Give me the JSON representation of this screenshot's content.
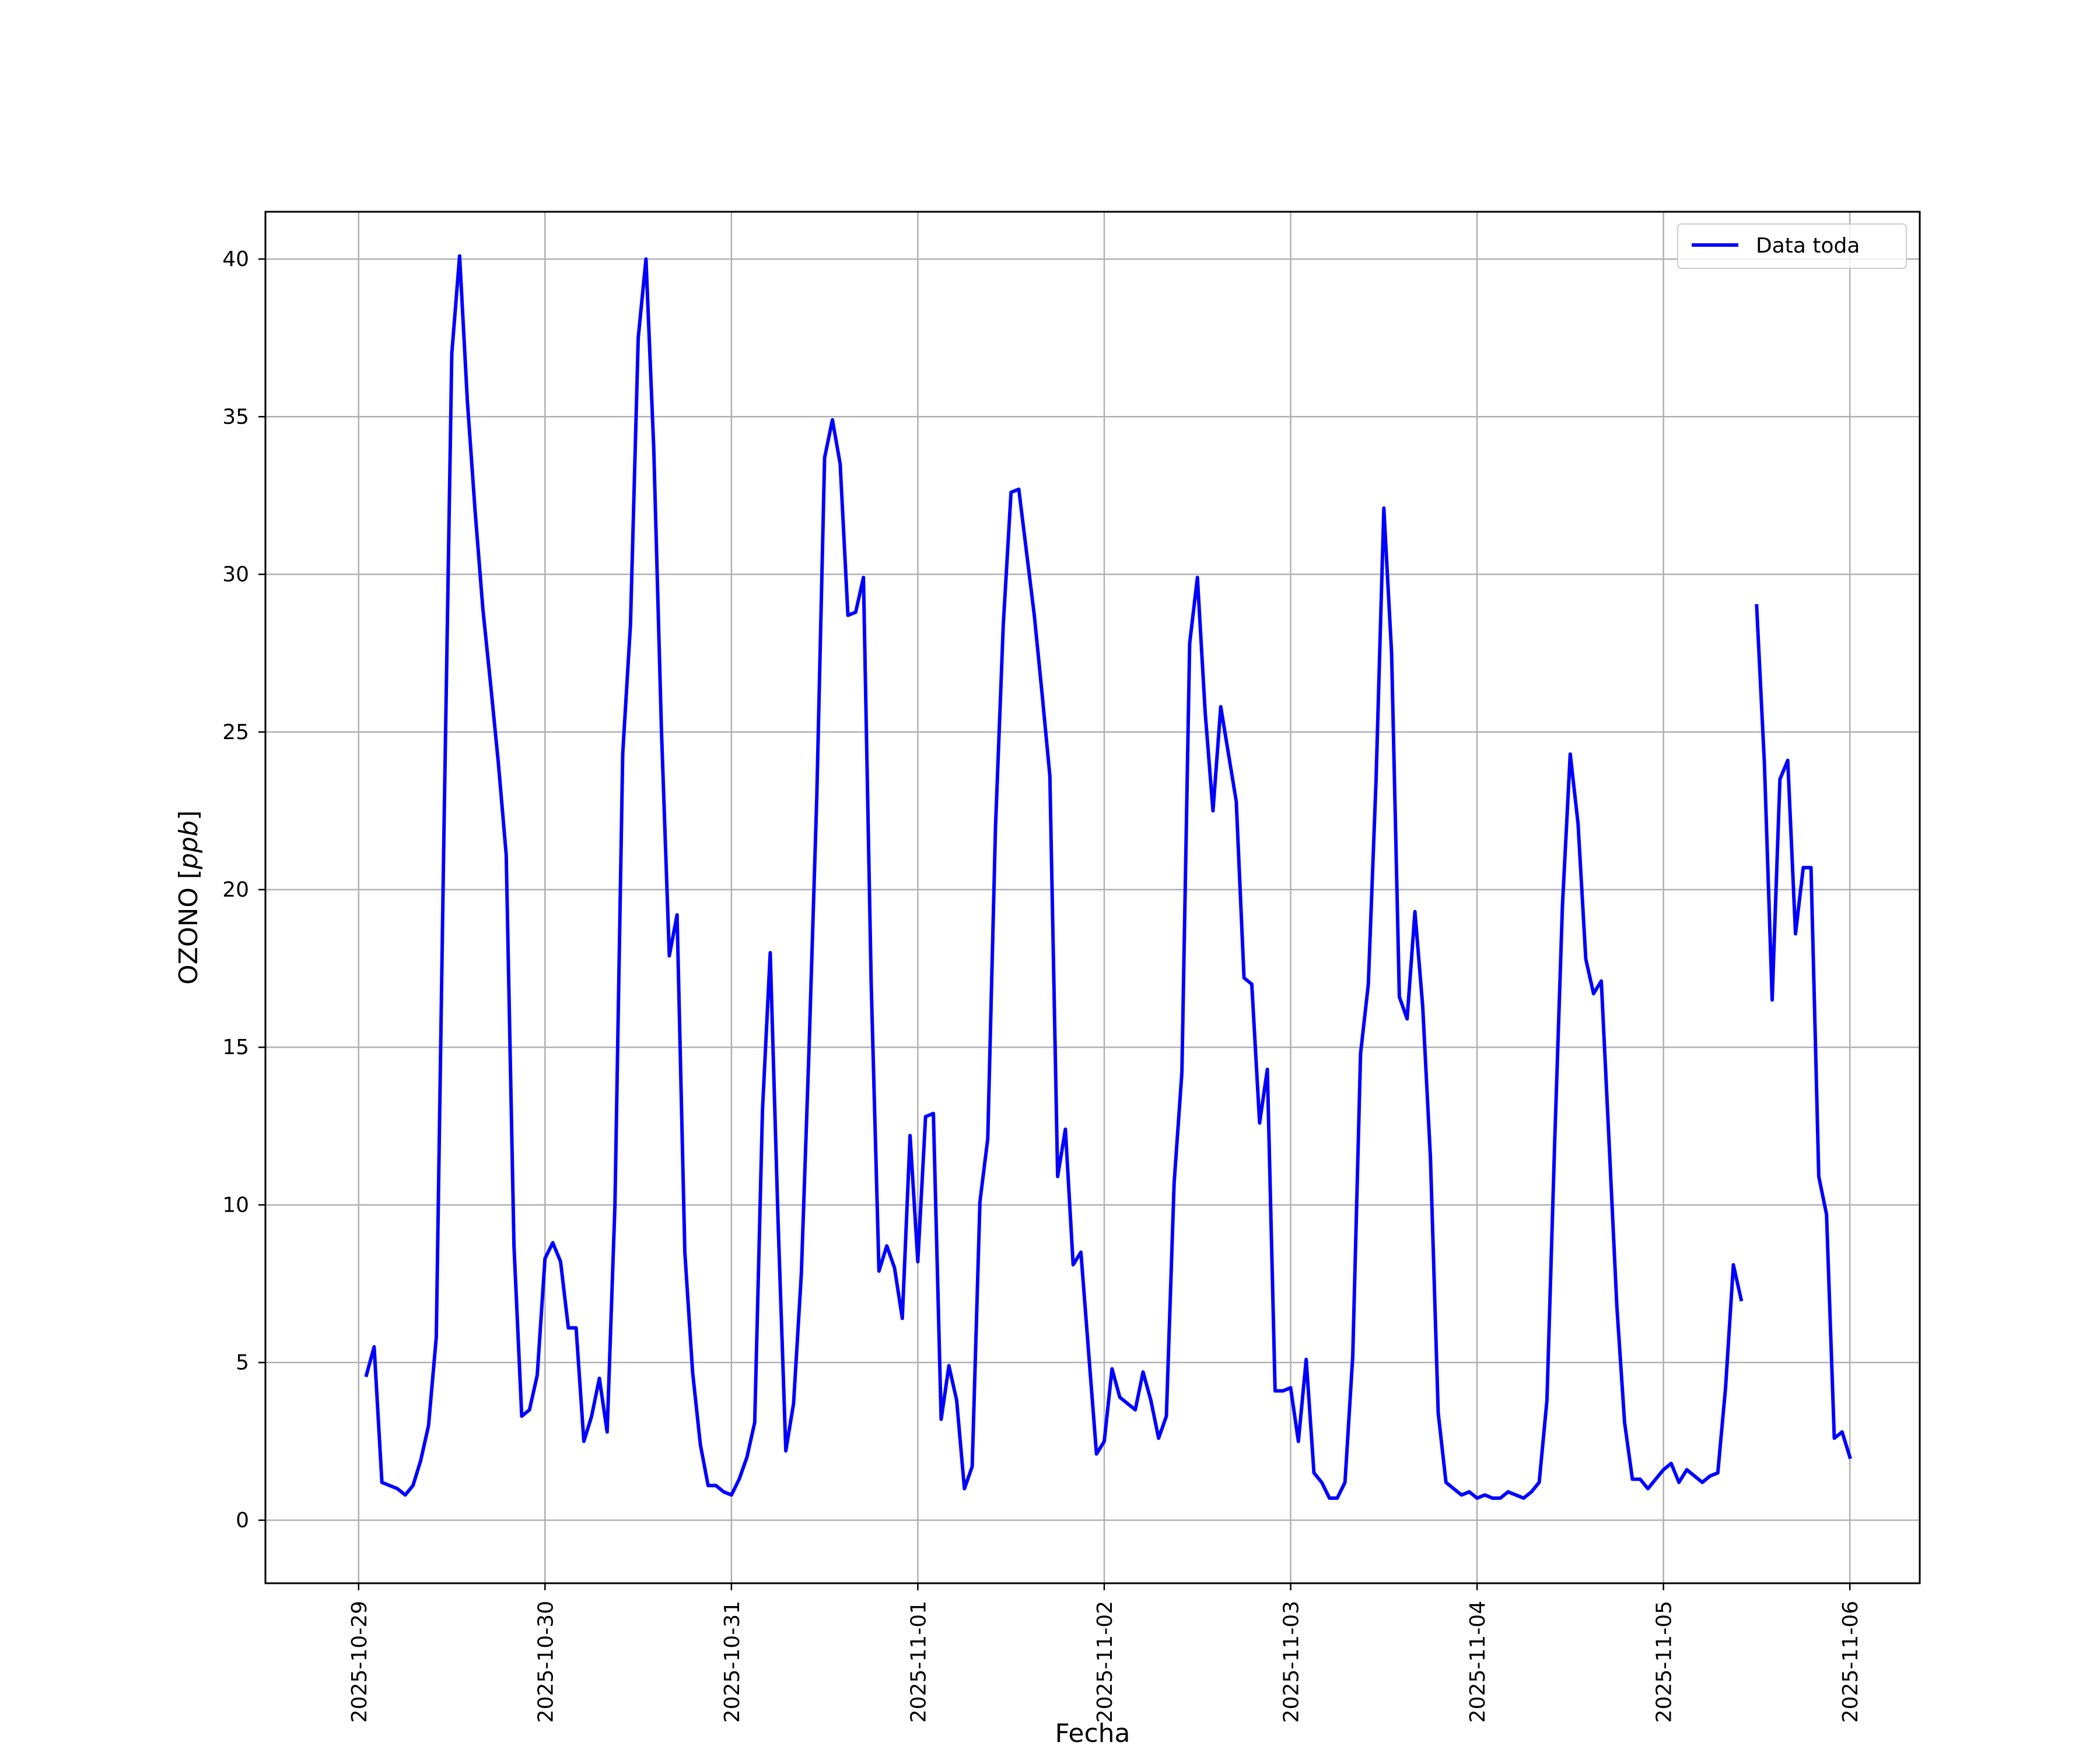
{
  "chart_data": {
    "type": "line",
    "title": "",
    "xlabel": "Fecha",
    "ylabel": "OZONO [ppb]",
    "ylabel_main": "OZONO [",
    "ylabel_unit": "ppb",
    "ylabel_close": "]",
    "xlim": [
      "2025-10-28T12:00",
      "2025-11-06T09:00"
    ],
    "ylim": [
      -2,
      41.5
    ],
    "yticks": [
      0,
      5,
      10,
      15,
      20,
      25,
      30,
      35,
      40
    ],
    "xticks": [
      "2025-10-29",
      "2025-10-30",
      "2025-10-31",
      "2025-11-01",
      "2025-11-02",
      "2025-11-03",
      "2025-11-04",
      "2025-11-05",
      "2025-11-06"
    ],
    "grid": true,
    "legend_position": "top-right",
    "colors": {
      "line": "#0000ff",
      "grid": "#b0b0b0",
      "axes": "#000000"
    },
    "series": [
      {
        "name": "Data toda",
        "x": [
          "2025-10-29 01:00",
          "2025-10-29 02:00",
          "2025-10-29 03:00",
          "2025-10-29 04:00",
          "2025-10-29 05:00",
          "2025-10-29 06:00",
          "2025-10-29 07:00",
          "2025-10-29 08:00",
          "2025-10-29 09:00",
          "2025-10-29 10:00",
          "2025-10-29 11:00",
          "2025-10-29 12:00",
          "2025-10-29 13:00",
          "2025-10-29 14:00",
          "2025-10-29 15:00",
          "2025-10-29 16:00",
          "2025-10-29 17:00",
          "2025-10-29 18:00",
          "2025-10-29 19:00",
          "2025-10-29 20:00",
          "2025-10-29 21:00",
          "2025-10-29 22:00",
          "2025-10-29 23:00",
          "2025-10-30 00:00",
          "2025-10-30 01:00",
          "2025-10-30 02:00",
          "2025-10-30 03:00",
          "2025-10-30 04:00",
          "2025-10-30 05:00",
          "2025-10-30 06:00",
          "2025-10-30 07:00",
          "2025-10-30 08:00",
          "2025-10-30 09:00",
          "2025-10-30 10:00",
          "2025-10-30 11:00",
          "2025-10-30 12:00",
          "2025-10-30 13:00",
          "2025-10-30 14:00",
          "2025-10-30 15:00",
          "2025-10-30 16:00",
          "2025-10-30 17:00",
          "2025-10-30 18:00",
          "2025-10-30 19:00",
          "2025-10-30 20:00",
          "2025-10-30 21:00",
          "2025-10-30 22:00",
          "2025-10-30 23:00",
          "2025-10-31 00:00",
          "2025-10-31 01:00",
          "2025-10-31 02:00",
          "2025-10-31 03:00",
          "2025-10-31 04:00",
          "2025-10-31 05:00",
          "2025-10-31 06:00",
          "2025-10-31 07:00",
          "2025-10-31 08:00",
          "2025-10-31 09:00",
          "2025-10-31 10:00",
          "2025-10-31 11:00",
          "2025-10-31 12:00",
          "2025-10-31 13:00",
          "2025-10-31 14:00",
          "2025-10-31 15:00",
          "2025-10-31 16:00",
          "2025-10-31 17:00",
          "2025-10-31 18:00",
          "2025-10-31 19:00",
          "2025-10-31 20:00",
          "2025-10-31 21:00",
          "2025-10-31 22:00",
          "2025-10-31 23:00",
          "2025-11-01 00:00",
          "2025-11-01 01:00",
          "2025-11-01 02:00",
          "2025-11-01 03:00",
          "2025-11-01 04:00",
          "2025-11-01 05:00",
          "2025-11-01 06:00",
          "2025-11-01 07:00",
          "2025-11-01 08:00",
          "2025-11-01 09:00",
          "2025-11-01 10:00",
          "2025-11-01 11:00",
          "2025-11-01 12:00",
          "2025-11-01 13:00",
          "2025-11-01 14:00",
          "2025-11-01 15:00",
          "2025-11-01 16:00",
          "2025-11-01 17:00",
          "2025-11-01 18:00",
          "2025-11-01 19:00",
          "2025-11-01 20:00",
          "2025-11-01 21:00",
          "2025-11-01 22:00",
          "2025-11-01 23:00",
          "2025-11-02 00:00",
          "2025-11-02 01:00",
          "2025-11-02 02:00",
          "2025-11-02 03:00",
          "2025-11-02 04:00",
          "2025-11-02 05:00",
          "2025-11-02 06:00",
          "2025-11-02 07:00",
          "2025-11-02 08:00",
          "2025-11-02 09:00",
          "2025-11-02 10:00",
          "2025-11-02 11:00",
          "2025-11-02 12:00",
          "2025-11-02 13:00",
          "2025-11-02 14:00",
          "2025-11-02 15:00",
          "2025-11-02 16:00",
          "2025-11-02 17:00",
          "2025-11-02 18:00",
          "2025-11-02 19:00",
          "2025-11-02 20:00",
          "2025-11-02 21:00",
          "2025-11-02 22:00",
          "2025-11-02 23:00",
          "2025-11-03 00:00",
          "2025-11-03 01:00",
          "2025-11-03 02:00",
          "2025-11-03 03:00",
          "2025-11-03 04:00",
          "2025-11-03 05:00",
          "2025-11-03 06:00",
          "2025-11-03 07:00",
          "2025-11-03 08:00",
          "2025-11-03 09:00",
          "2025-11-03 10:00",
          "2025-11-03 11:00",
          "2025-11-03 12:00",
          "2025-11-03 13:00",
          "2025-11-03 14:00",
          "2025-11-03 15:00",
          "2025-11-03 16:00",
          "2025-11-03 17:00",
          "2025-11-03 18:00",
          "2025-11-03 19:00",
          "2025-11-03 20:00",
          "2025-11-03 21:00",
          "2025-11-03 22:00",
          "2025-11-03 23:00",
          "2025-11-04 00:00",
          "2025-11-04 01:00",
          "2025-11-04 02:00",
          "2025-11-04 03:00",
          "2025-11-04 04:00",
          "2025-11-04 05:00",
          "2025-11-04 06:00",
          "2025-11-04 07:00",
          "2025-11-04 08:00",
          "2025-11-04 09:00",
          "2025-11-04 10:00",
          "2025-11-04 11:00",
          "2025-11-04 12:00",
          "2025-11-04 13:00",
          "2025-11-04 14:00",
          "2025-11-04 15:00",
          "2025-11-04 16:00",
          "2025-11-04 17:00",
          "2025-11-04 18:00",
          "2025-11-04 19:00",
          "2025-11-04 20:00",
          "2025-11-04 21:00",
          "2025-11-04 22:00",
          "2025-11-04 23:00",
          "2025-11-05 00:00",
          "2025-11-05 01:00",
          "2025-11-05 02:00",
          "2025-11-05 03:00",
          "2025-11-05 04:00",
          "2025-11-05 05:00",
          "2025-11-05 06:00",
          "2025-11-05 07:00",
          "2025-11-05 08:00",
          "2025-11-05 09:00",
          "2025-11-05 10:00",
          "2025-11-05 11:00",
          "2025-11-05 12:00",
          "2025-11-05 13:00",
          "2025-11-05 14:00",
          "2025-11-05 15:00",
          "2025-11-05 16:00",
          "2025-11-05 17:00",
          "2025-11-05 18:00",
          "2025-11-05 19:00",
          "2025-11-05 20:00",
          "2025-11-05 21:00",
          "2025-11-05 22:00",
          "2025-11-05 23:00",
          "2025-11-06 00:00"
        ],
        "y": [
          4.6,
          5.5,
          1.2,
          1.1,
          1.0,
          0.8,
          1.1,
          1.9,
          3.0,
          5.8,
          22.0,
          37.0,
          40.1,
          35.5,
          32.0,
          28.9,
          26.5,
          24.0,
          21.1,
          8.7,
          3.3,
          3.5,
          4.6,
          8.3,
          8.8,
          8.2,
          6.1,
          6.1,
          2.5,
          3.3,
          4.5,
          2.8,
          10.0,
          24.3,
          28.4,
          37.5,
          40.0,
          34.0,
          25.0,
          17.9,
          19.2,
          8.5,
          4.7,
          2.4,
          1.1,
          1.1,
          0.9,
          0.8,
          1.3,
          2.0,
          3.1,
          13.0,
          18.0,
          9.5,
          2.2,
          3.7,
          7.8,
          15.0,
          23.0,
          33.7,
          34.9,
          33.5,
          28.7,
          28.8,
          29.9,
          17.0,
          7.9,
          8.7,
          8.0,
          6.4,
          12.2,
          8.2,
          12.8,
          12.9,
          3.2,
          4.9,
          3.8,
          1.0,
          1.7,
          10.1,
          12.1,
          22.0,
          28.4,
          32.6,
          32.7,
          30.7,
          28.7,
          26.2,
          23.6,
          10.9,
          12.4,
          8.1,
          8.5,
          5.3,
          2.1,
          2.5,
          4.8,
          3.9,
          3.7,
          3.5,
          4.7,
          3.8,
          2.6,
          3.3,
          10.7,
          14.2,
          27.8,
          29.9,
          25.6,
          22.5,
          25.8,
          24.3,
          22.8,
          17.2,
          17.0,
          12.6,
          14.3,
          4.1,
          4.1,
          4.2,
          2.5,
          5.1,
          1.5,
          1.2,
          0.7,
          0.7,
          1.2,
          5.2,
          14.8,
          17.0,
          23.5,
          32.1,
          27.5,
          16.6,
          15.9,
          19.3,
          16.3,
          11.5,
          3.4,
          1.2,
          1.0,
          0.8,
          0.9,
          0.7,
          0.8,
          0.7,
          0.7,
          0.9,
          0.8,
          0.7,
          0.9,
          1.2,
          3.8,
          12.0,
          19.5,
          24.3,
          22.1,
          17.8,
          16.7,
          17.1,
          12.0,
          6.8,
          3.1,
          1.3,
          1.3,
          1.0,
          1.3,
          1.6,
          1.8,
          1.2,
          1.6,
          1.4,
          1.2,
          1.4,
          1.5,
          4.2,
          8.1,
          7.0,
          null,
          29.0,
          24.0,
          16.5,
          23.5,
          24.1,
          18.6,
          20.7,
          20.7,
          10.9,
          9.7,
          2.6,
          2.8,
          2.0
        ]
      }
    ]
  }
}
